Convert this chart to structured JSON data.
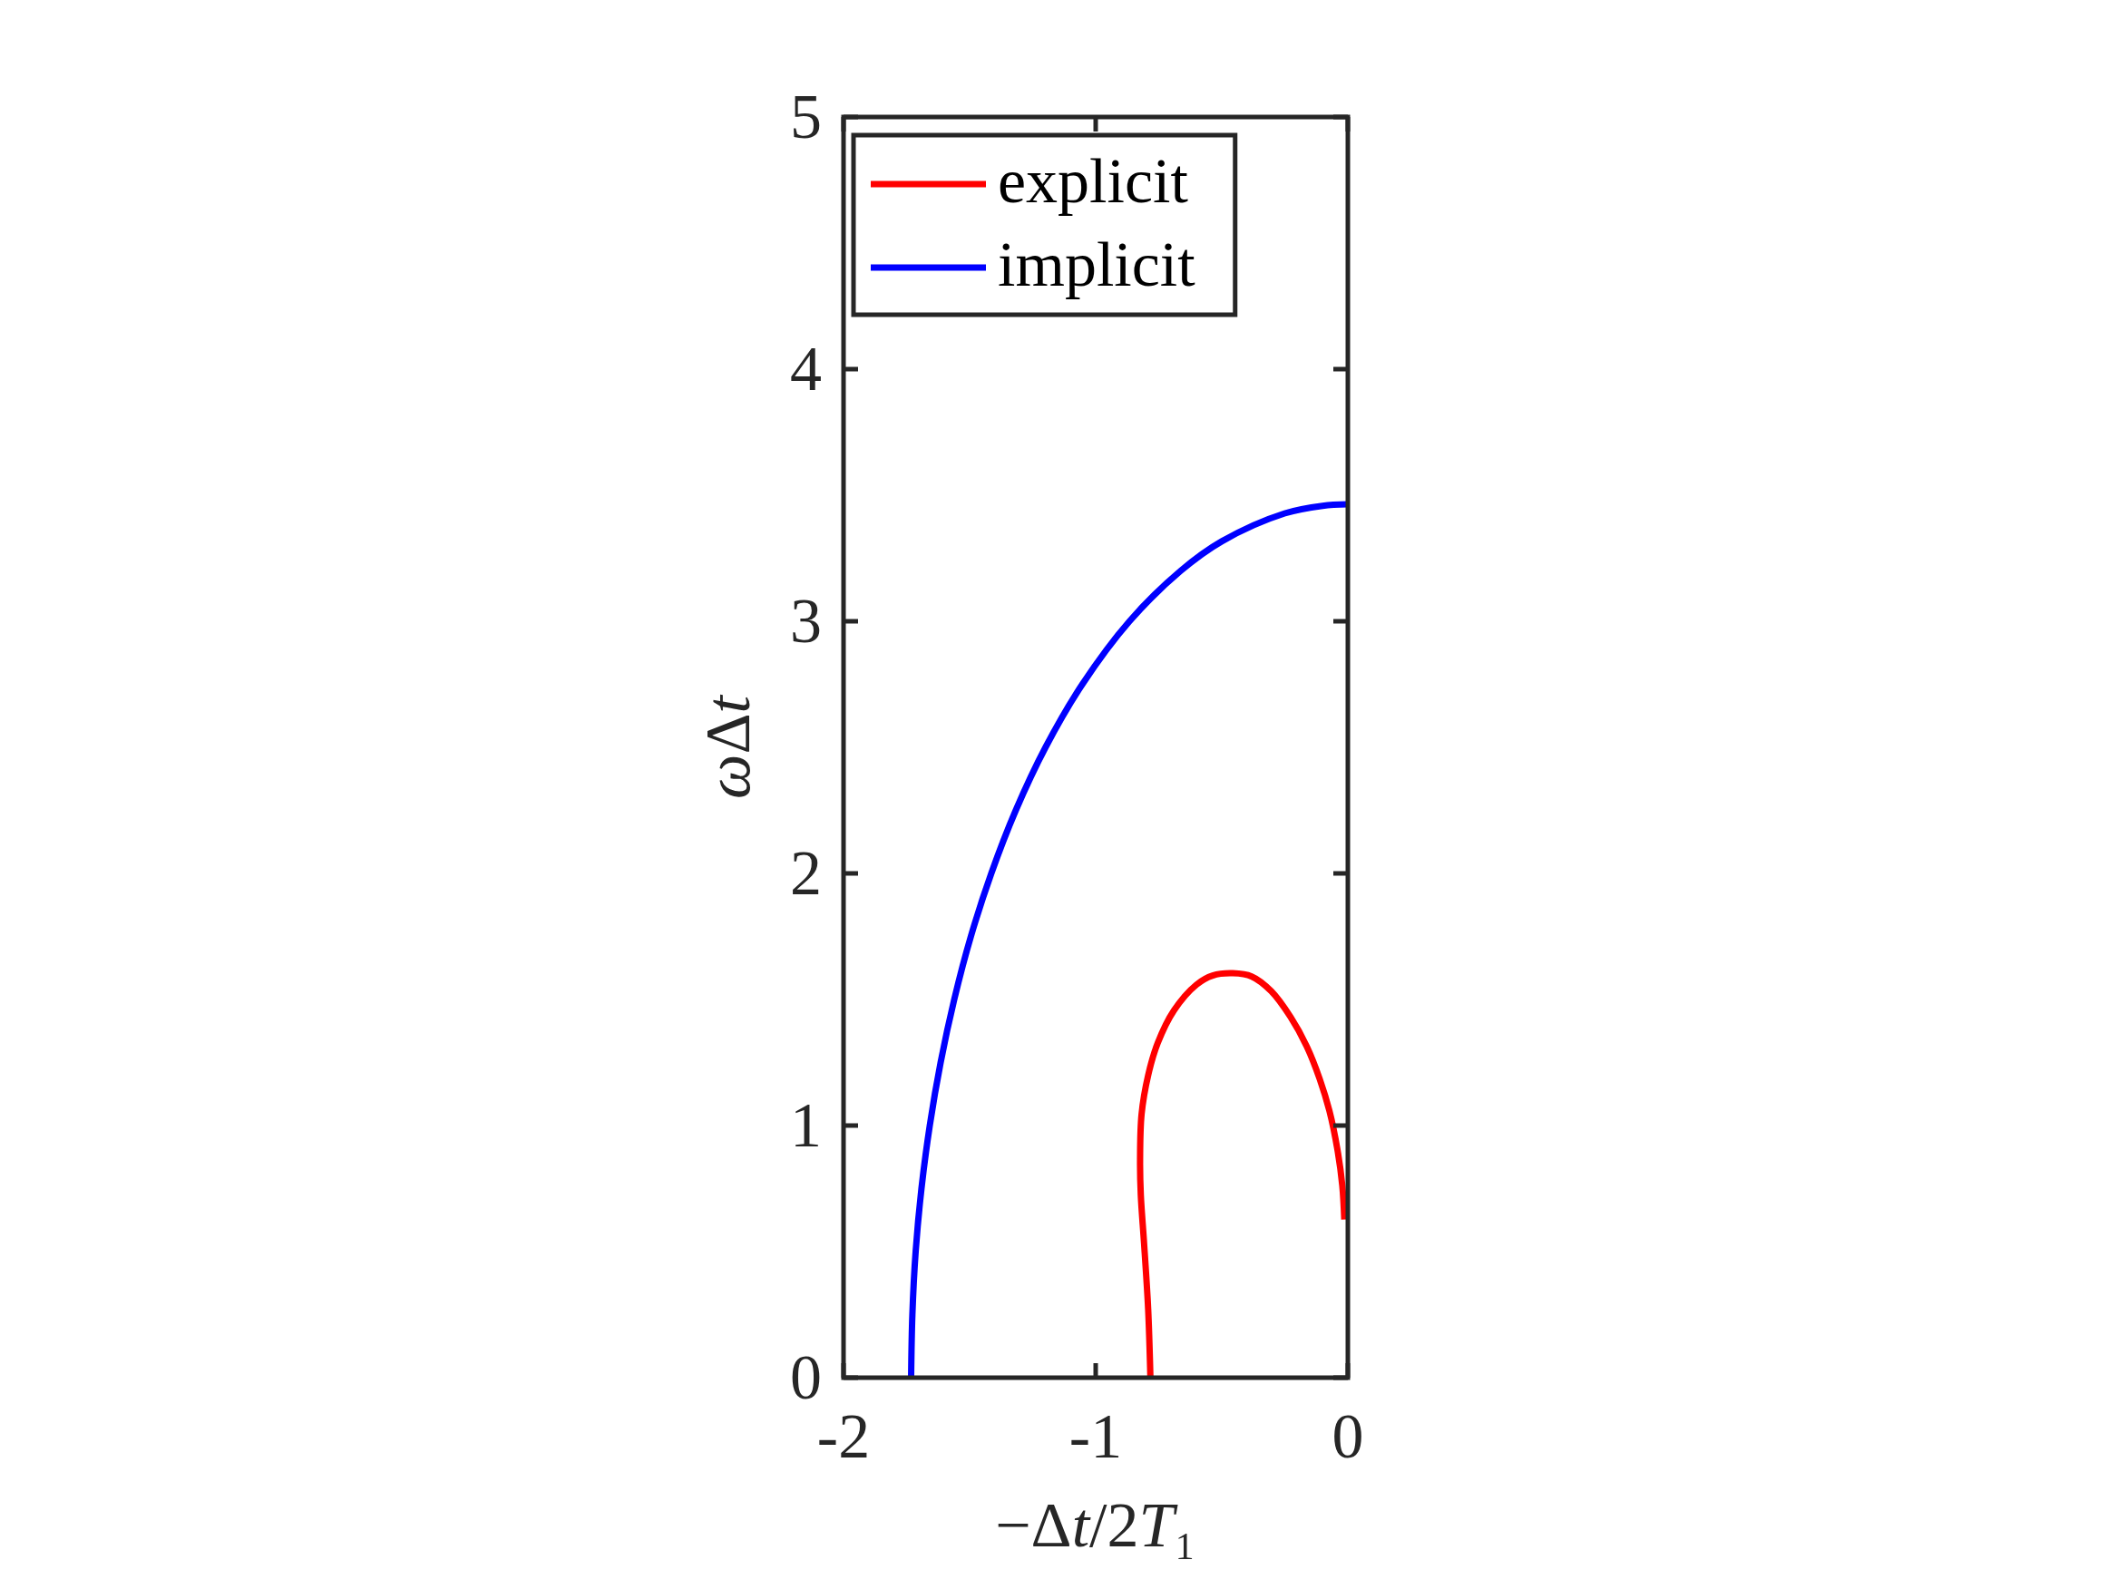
{
  "chart_data": {
    "type": "line",
    "xlabel": "−Δt/2T₁",
    "ylabel": "ωΔt",
    "xlim": [
      -2,
      0
    ],
    "ylim": [
      0,
      5
    ],
    "xticks": [
      -2,
      -1,
      0
    ],
    "yticks": [
      0,
      1,
      2,
      3,
      4,
      5
    ],
    "legend": "top left",
    "series": [
      {
        "name": "explicit",
        "color": "#ff0000",
        "x": [
          -0.783,
          -0.792,
          -0.808,
          -0.821,
          -0.824,
          -0.818,
          -0.792,
          -0.754,
          -0.69,
          -0.6,
          -0.536,
          -0.456,
          -0.381,
          -0.304,
          -0.227,
          -0.163,
          -0.112,
          -0.073,
          -0.041,
          -0.022,
          -0.014
        ],
        "values": [
          0,
          0.274,
          0.531,
          0.723,
          0.852,
          1.045,
          1.199,
          1.327,
          1.456,
          1.559,
          1.595,
          1.604,
          1.591,
          1.533,
          1.43,
          1.314,
          1.186,
          1.058,
          0.903,
          0.762,
          0.627
        ]
      },
      {
        "name": "implicit",
        "color": "#0000ff",
        "x": [
          -1.732,
          -1.727,
          -1.714,
          -1.691,
          -1.658,
          -1.615,
          -1.561,
          -1.495,
          -1.414,
          -1.317,
          -1.199,
          -1.053,
          -0.866,
          -0.663,
          -0.5,
          -0.25,
          -0.1,
          0
        ],
        "values": [
          0,
          0.25,
          0.5,
          0.75,
          1,
          1.25,
          1.5,
          1.75,
          2,
          2.25,
          2.5,
          2.75,
          3,
          3.2,
          3.317,
          3.428,
          3.458,
          3.464
        ]
      }
    ]
  }
}
